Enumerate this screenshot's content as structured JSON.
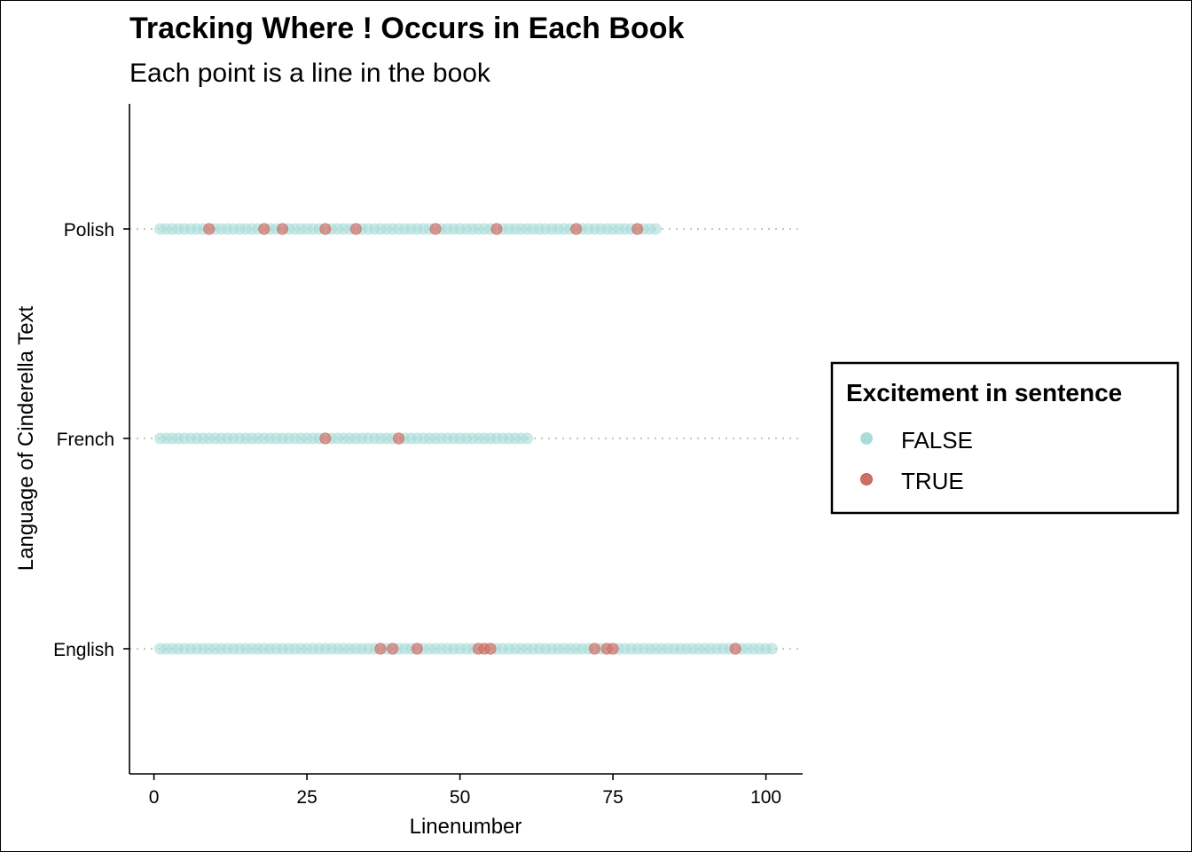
{
  "chart_data": {
    "type": "scatter",
    "title": "Tracking Where ! Occurs in Each Book",
    "subtitle": "Each point is a line in the book",
    "xlabel": "Linenumber",
    "ylabel": "Language of Cinderella Text",
    "xlim": [
      -4,
      106
    ],
    "x_ticks": [
      0,
      25,
      50,
      75,
      100
    ],
    "categories": [
      "English",
      "French",
      "Polish"
    ],
    "grid": "dotted horizontal line at each category",
    "legend": {
      "title": "Excitement in sentence",
      "position": "right",
      "entries": [
        {
          "label": "FALSE",
          "color": "#a8dcd8"
        },
        {
          "label": "TRUE",
          "color": "#cd6f66"
        }
      ]
    },
    "series": [
      {
        "category": "English",
        "line_count": 101,
        "true_lines": [
          37,
          39,
          43,
          53,
          54,
          55,
          72,
          74,
          75,
          95
        ]
      },
      {
        "category": "French",
        "line_count": 61,
        "true_lines": [
          28,
          40
        ]
      },
      {
        "category": "Polish",
        "line_count": 82,
        "true_lines": [
          9,
          18,
          21,
          28,
          33,
          46,
          56,
          69,
          79
        ]
      }
    ]
  }
}
